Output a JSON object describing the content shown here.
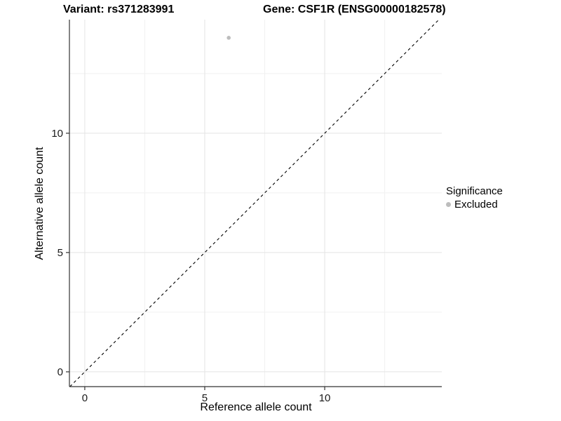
{
  "titles": {
    "variant": "Variant: rs371283991",
    "gene": "Gene: CSF1R (ENSG00000182578)"
  },
  "axes": {
    "x_label": "Reference allele count",
    "y_label": "Alternative allele count"
  },
  "legend": {
    "title": "Significance",
    "items": [
      {
        "label": "Excluded",
        "color": "#bdbdbd"
      }
    ]
  },
  "chart_data": {
    "type": "scatter",
    "title": "Variant: rs371283991   Gene: CSF1R (ENSG00000182578)",
    "xlabel": "Reference allele count",
    "ylabel": "Alternative allele count",
    "points": [
      {
        "x": 6,
        "y": 14,
        "series": "Excluded"
      }
    ],
    "series": [
      {
        "name": "Excluded",
        "color": "#bdbdbd"
      }
    ],
    "x_ticks": [
      0,
      5,
      10
    ],
    "y_ticks": [
      0,
      5,
      10
    ],
    "x_minor_ticks": [
      2.5,
      7.5,
      12.5
    ],
    "y_minor_ticks": [
      2.5,
      7.5,
      12.5
    ],
    "xlim": [
      -0.64,
      14.88
    ],
    "ylim": [
      -0.62,
      14.76
    ],
    "reference_line": {
      "type": "identity",
      "slope": 1,
      "intercept": 0,
      "style": "dashed",
      "color": "#000000"
    },
    "grid": true,
    "legend_position": "right",
    "point_radius": 2.8,
    "colors": {
      "point": "#bdbdbd",
      "grid_major": "#e4e4e4",
      "grid_minor": "#f1f1f1",
      "axis": "#333333",
      "tick_label": "#1a1a1a",
      "reference_line": "#000000"
    }
  }
}
